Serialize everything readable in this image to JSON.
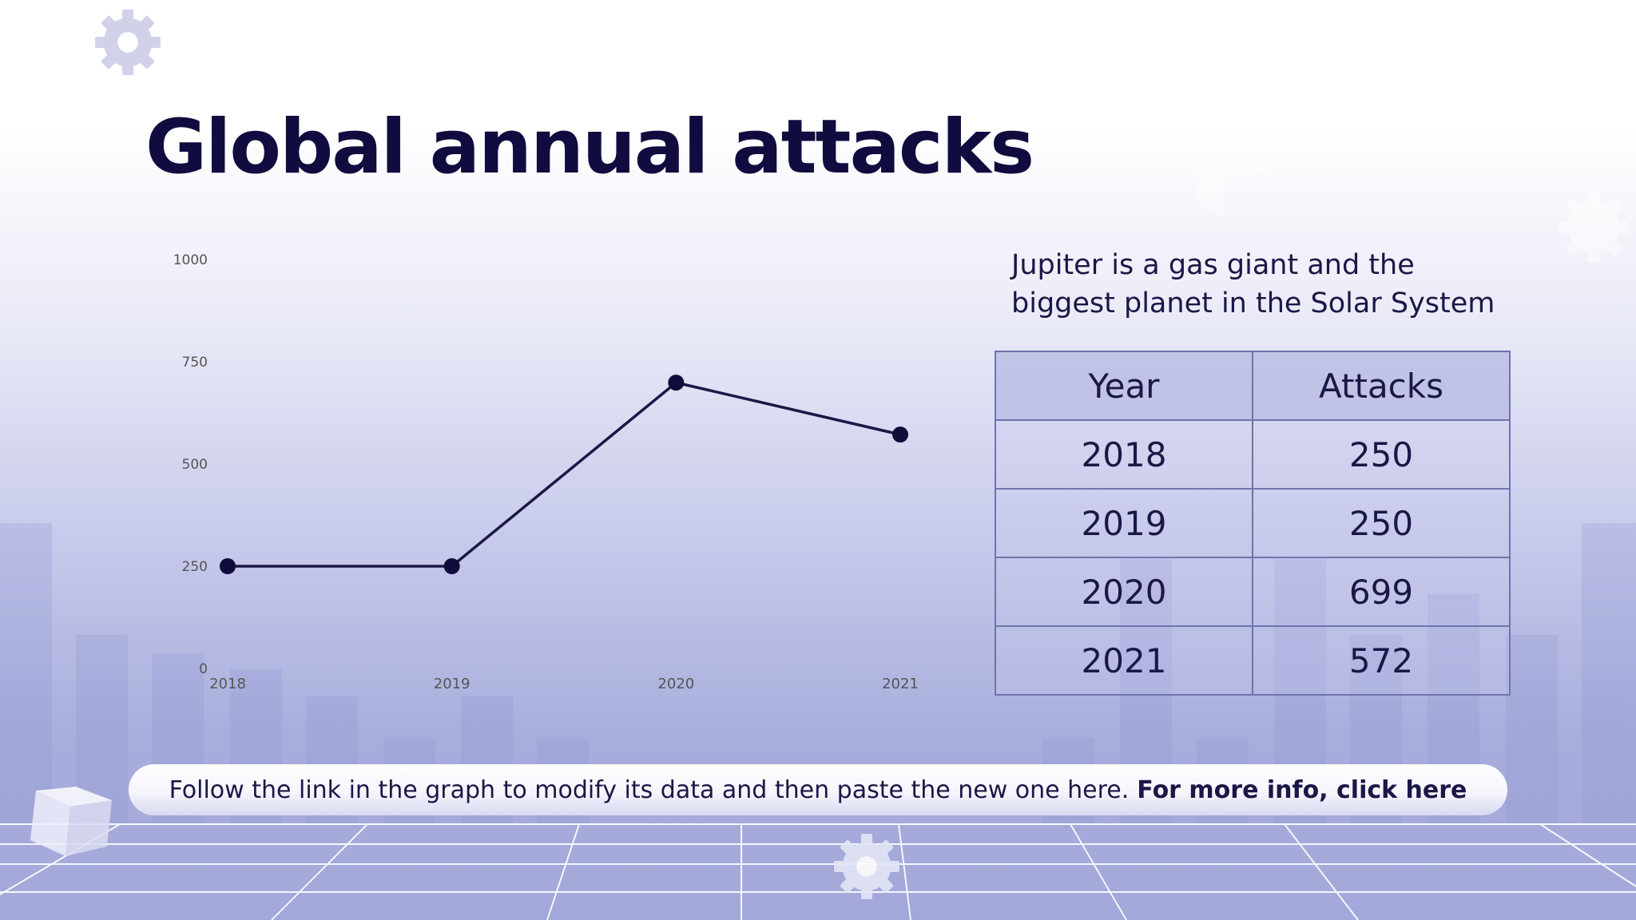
{
  "slide": {
    "title": "Global annual attacks",
    "description": "Jupiter is a gas giant and the biggest planet in the Solar System",
    "footer_text": "Follow the link in the graph to modify its data and then paste the new one here.",
    "footer_link": "For more info, click here"
  },
  "table": {
    "headers": [
      "Year",
      "Attacks"
    ],
    "rows": [
      [
        "2018",
        "250"
      ],
      [
        "2019",
        "250"
      ],
      [
        "2020",
        "699"
      ],
      [
        "2021",
        "572"
      ]
    ]
  },
  "colors": {
    "title": "#100c3f",
    "line": "#1b1746",
    "marker": "#0f0b3a",
    "table_border": "#6f74ad",
    "axis_text": "#555555"
  },
  "chart_data": {
    "type": "line",
    "title": "",
    "xlabel": "",
    "ylabel": "",
    "categories": [
      "2018",
      "2019",
      "2020",
      "2021"
    ],
    "series": [
      {
        "name": "Attacks",
        "values": [
          250,
          250,
          699,
          572
        ]
      }
    ],
    "ylim": [
      0,
      1000
    ],
    "yticks": [
      "0",
      "250",
      "500",
      "750",
      "1000"
    ],
    "grid": false,
    "legend": "none"
  }
}
